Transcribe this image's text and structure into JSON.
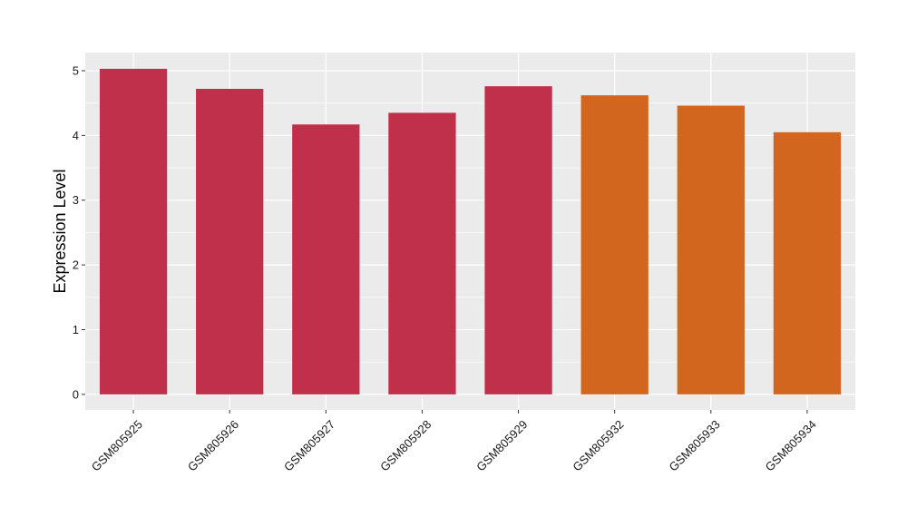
{
  "chart_data": {
    "type": "bar",
    "title": "",
    "xlabel": "",
    "ylabel": "Expression Level",
    "ylim": [
      -0.24,
      5.28
    ],
    "yticks": [
      0,
      1,
      2,
      3,
      4,
      5
    ],
    "grid": true,
    "categories": [
      "GSM805925",
      "GSM805926",
      "GSM805927",
      "GSM805928",
      "GSM805929",
      "GSM805932",
      "GSM805933",
      "GSM805934"
    ],
    "values": [
      5.03,
      4.72,
      4.17,
      4.35,
      4.76,
      4.62,
      4.46,
      4.05
    ],
    "bar_colors": [
      "#c0304a",
      "#c0304a",
      "#c0304a",
      "#c0304a",
      "#c0304a",
      "#d2661e",
      "#d2661e",
      "#d2661e"
    ],
    "panel_background": "#ebebeb",
    "gridline_color": "#ffffff"
  }
}
